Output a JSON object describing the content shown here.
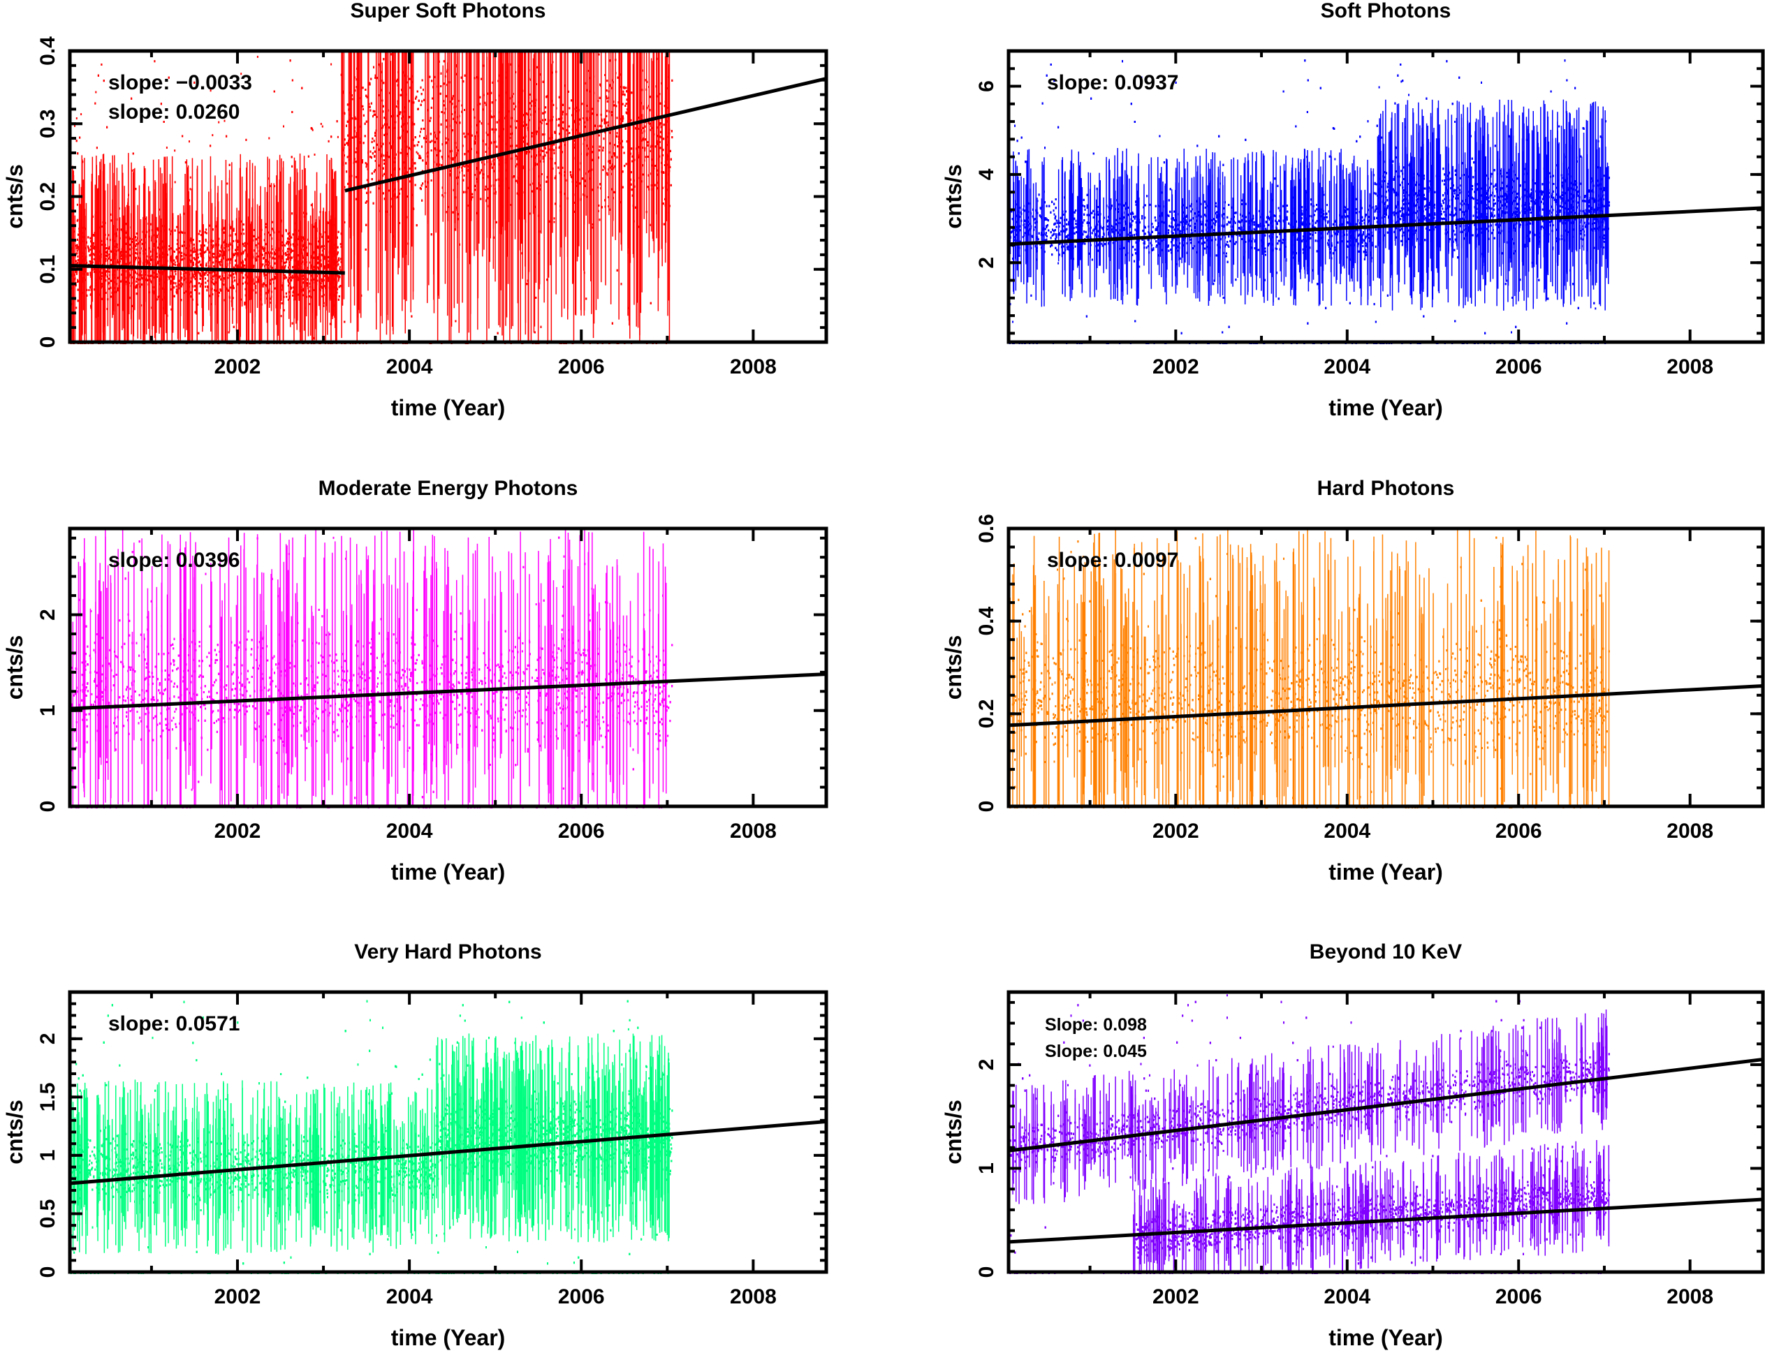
{
  "chart_data": [
    {
      "type": "scatter",
      "title": "Super Soft Photons",
      "xlabel": "time (Year)",
      "ylabel": "cnts/s",
      "xlim": [
        2000.05,
        2008.85
      ],
      "ylim": [
        0,
        0.4
      ],
      "xticks": [
        2002,
        2004,
        2006,
        2008
      ],
      "yticks": [
        0,
        0.1,
        0.2,
        0.3,
        0.4
      ],
      "ytick_labels": [
        "0",
        "0.1",
        "0.2",
        "0.3",
        "0.4"
      ],
      "color": "#ff0000",
      "data_range": [
        2000.05,
        2007.05
      ],
      "annotations": [
        "slope: -0.0033",
        "slope: 0.0260"
      ],
      "bands": [
        {
          "x": [
            2000.05,
            2003.2
          ],
          "center": 0.11,
          "spread": 0.05
        },
        {
          "x": [
            2003.2,
            2007.05
          ],
          "center": 0.28,
          "spread": 0.1
        }
      ],
      "fit_lines": [
        {
          "x": [
            2000.05,
            2003.25
          ],
          "y": [
            0.105,
            0.095
          ]
        },
        {
          "x": [
            2003.25,
            2008.85
          ],
          "y": [
            0.208,
            0.362
          ]
        }
      ]
    },
    {
      "type": "scatter",
      "title": "Soft Photons",
      "xlabel": "time (Year)",
      "ylabel": "cnts/s",
      "xlim": [
        2000.05,
        2008.85
      ],
      "ylim": [
        0.2,
        6.8
      ],
      "xticks": [
        2002,
        2004,
        2006,
        2008
      ],
      "yticks": [
        2,
        4,
        6
      ],
      "ytick_labels": [
        "2",
        "4",
        "6"
      ],
      "color": "#0000ff",
      "data_range": [
        2000.05,
        2007.05
      ],
      "annotations": [
        "slope: 0.0937"
      ],
      "bands": [
        {
          "x": [
            2000.05,
            2004.3
          ],
          "center": 2.8,
          "spread": 0.6
        },
        {
          "x": [
            2004.3,
            2007.05
          ],
          "center": 3.3,
          "spread": 0.8
        }
      ],
      "fit_lines": [
        {
          "x": [
            2000.05,
            2008.85
          ],
          "y": [
            2.42,
            3.24
          ]
        }
      ]
    },
    {
      "type": "scatter",
      "title": "Moderate Energy Photons",
      "xlabel": "time (Year)",
      "ylabel": "cnts/s",
      "xlim": [
        2000.05,
        2008.85
      ],
      "ylim": [
        0,
        2.9
      ],
      "xticks": [
        2002,
        2004,
        2006,
        2008
      ],
      "yticks": [
        0,
        1,
        2
      ],
      "ytick_labels": [
        "0",
        "1",
        "2"
      ],
      "color": "#ff00ff",
      "data_range": [
        2000.05,
        2007.05
      ],
      "annotations": [
        "slope: 0.0396"
      ],
      "bands": [
        {
          "x": [
            2000.05,
            2007.05
          ],
          "center": 1.25,
          "spread": 0.55
        }
      ],
      "fit_lines": [
        {
          "x": [
            2000.05,
            2008.85
          ],
          "y": [
            1.02,
            1.38
          ]
        }
      ]
    },
    {
      "type": "scatter",
      "title": "Hard Photons",
      "xlabel": "time (Year)",
      "ylabel": "cnts/s",
      "xlim": [
        2000.05,
        2008.85
      ],
      "ylim": [
        0,
        0.6
      ],
      "xticks": [
        2002,
        2004,
        2006,
        2008
      ],
      "yticks": [
        0,
        0.2,
        0.4,
        0.6
      ],
      "ytick_labels": [
        "0",
        "0.2",
        "0.4",
        "0.6"
      ],
      "color": "#ff8000",
      "data_range": [
        2000.05,
        2007.05
      ],
      "annotations": [
        "slope: 0.0097"
      ],
      "bands": [
        {
          "x": [
            2000.05,
            2007.05
          ],
          "center": 0.24,
          "spread": 0.12
        }
      ],
      "fit_lines": [
        {
          "x": [
            2000.05,
            2008.85
          ],
          "y": [
            0.175,
            0.26
          ]
        }
      ]
    },
    {
      "type": "scatter",
      "title": "Very Hard  Photons",
      "xlabel": "time (Year)",
      "ylabel": "cnts/s",
      "xlim": [
        2000.05,
        2008.85
      ],
      "ylim": [
        0,
        2.4
      ],
      "xticks": [
        2002,
        2004,
        2006,
        2008
      ],
      "yticks": [
        0,
        0.5,
        1,
        1.5,
        2
      ],
      "ytick_labels": [
        "0",
        "0.5",
        "1",
        "1.5",
        "2"
      ],
      "color": "#00ff80",
      "data_range": [
        2000.05,
        2007.05
      ],
      "annotations": [
        "slope: 0.0571"
      ],
      "bands": [
        {
          "x": [
            2000.05,
            2004.3
          ],
          "center": 0.9,
          "spread": 0.25
        },
        {
          "x": [
            2004.3,
            2007.05
          ],
          "center": 1.15,
          "spread": 0.3
        }
      ],
      "fit_lines": [
        {
          "x": [
            2000.05,
            2008.85
          ],
          "y": [
            0.76,
            1.29
          ]
        }
      ]
    },
    {
      "type": "scatter",
      "title": "Beyond 10 KeV",
      "xlabel": "time (Year)",
      "ylabel": "cnts/s",
      "xlim": [
        2000.05,
        2008.85
      ],
      "ylim": [
        0,
        2.7
      ],
      "xticks": [
        2002,
        2004,
        2006,
        2008
      ],
      "yticks": [
        0,
        1,
        2
      ],
      "ytick_labels": [
        "0",
        "1",
        "2"
      ],
      "color": "#8000ff",
      "data_range": [
        2000.05,
        2007.05
      ],
      "annotations": [
        "Slope: 0.098",
        "Slope: 0.045"
      ],
      "bands": [
        {
          "x": [
            2000.05,
            2007.05
          ],
          "center_start": 1.2,
          "center_end": 1.95,
          "spread": 0.2
        },
        {
          "x": [
            2001.5,
            2007.05
          ],
          "center_start": 0.35,
          "center_end": 0.75,
          "spread": 0.18
        }
      ],
      "fit_lines": [
        {
          "x": [
            2000.05,
            2008.85
          ],
          "y": [
            1.17,
            2.05
          ]
        },
        {
          "x": [
            2000.05,
            2008.85
          ],
          "y": [
            0.29,
            0.7
          ]
        }
      ]
    }
  ]
}
